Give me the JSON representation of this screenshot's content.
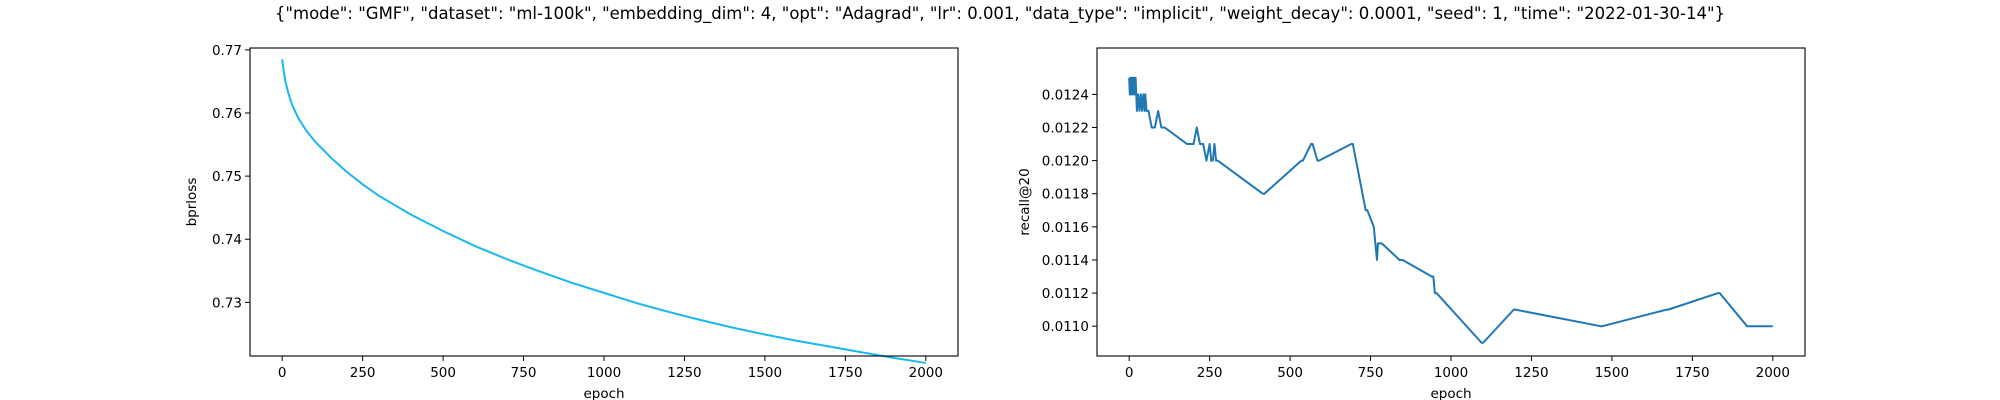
{
  "figure": {
    "suptitle": "{\"mode\": \"GMF\", \"dataset\": \"ml-100k\", \"embedding_dim\": 4, \"opt\": \"Adagrad\", \"lr\": 0.001, \"data_type\": \"implicit\", \"weight_decay\": 0.0001, \"seed\": 1, \"time\": \"2022-01-30-14\"}"
  },
  "chart_data": [
    {
      "type": "line",
      "xlabel": "epoch",
      "ylabel": "bprloss",
      "xlim": [
        -100,
        2100
      ],
      "ylim": [
        0.7215,
        0.7703
      ],
      "xticks": [
        0,
        250,
        500,
        750,
        1000,
        1250,
        1500,
        1750,
        2000
      ],
      "yticks": [
        0.73,
        0.74,
        0.75,
        0.76,
        0.77
      ],
      "grid": false,
      "color": "#1ab7f0",
      "series": [
        {
          "x": [
            0,
            5,
            10,
            20,
            30,
            50,
            75,
            100,
            150,
            200,
            250,
            300,
            400,
            500,
            600,
            700,
            800,
            900,
            1000,
            1100,
            1200,
            1300,
            1400,
            1500,
            1600,
            1700,
            1800,
            1900,
            2000
          ],
          "y": [
            0.7685,
            0.7665,
            0.765,
            0.763,
            0.7614,
            0.7592,
            0.7572,
            0.7556,
            0.753,
            0.7507,
            0.7487,
            0.7469,
            0.7439,
            0.7413,
            0.7389,
            0.7368,
            0.7349,
            0.7331,
            0.7315,
            0.7299,
            0.7285,
            0.7272,
            0.726,
            0.7249,
            0.7239,
            0.723,
            0.7221,
            0.7212,
            0.7204
          ]
        }
      ]
    },
    {
      "type": "line",
      "xlabel": "epoch",
      "ylabel": "recall@20",
      "xlim": [
        -100,
        2100
      ],
      "ylim": [
        0.01082,
        0.01268
      ],
      "xticks": [
        0,
        250,
        500,
        750,
        1000,
        1250,
        1500,
        1750,
        2000
      ],
      "yticks": [
        0.011,
        0.0112,
        0.0114,
        0.0116,
        0.0118,
        0.012,
        0.0122,
        0.0124
      ],
      "grid": false,
      "color": "#1f77b4",
      "series": [
        {
          "x": [
            0,
            2,
            4,
            6,
            8,
            10,
            12,
            14,
            16,
            18,
            20,
            22,
            24,
            28,
            32,
            36,
            40,
            44,
            48,
            50,
            54,
            60,
            70,
            80,
            90,
            100,
            110,
            180,
            200,
            210,
            220,
            230,
            240,
            250,
            255,
            260,
            265,
            270,
            275,
            415,
            420,
            535,
            540,
            565,
            570,
            585,
            590,
            690,
            695,
            735,
            740,
            760,
            765,
            770,
            773,
            778,
            785,
            840,
            850,
            940,
            945,
            950,
            955,
            1095,
            1100,
            1195,
            1200,
            1465,
            1470,
            1670,
            1675,
            1830,
            1835,
            1920,
            1925,
            2000
          ],
          "y": [
            0.0125,
            0.0124,
            0.0125,
            0.0124,
            0.0125,
            0.0124,
            0.0125,
            0.0124,
            0.0125,
            0.0124,
            0.0125,
            0.0124,
            0.0123,
            0.0124,
            0.0123,
            0.0124,
            0.0123,
            0.0124,
            0.0123,
            0.0124,
            0.0123,
            0.0123,
            0.0122,
            0.0122,
            0.0123,
            0.0122,
            0.0122,
            0.0121,
            0.0121,
            0.0122,
            0.0121,
            0.0121,
            0.012,
            0.0121,
            0.012,
            0.012,
            0.0121,
            0.012,
            0.012,
            0.0118,
            0.0118,
            0.012,
            0.012,
            0.0121,
            0.0121,
            0.012,
            0.012,
            0.0121,
            0.0121,
            0.0117,
            0.0117,
            0.0116,
            0.0115,
            0.0114,
            0.0115,
            0.0115,
            0.0115,
            0.0114,
            0.0114,
            0.0113,
            0.0113,
            0.0112,
            0.0112,
            0.0109,
            0.0109,
            0.0111,
            0.0111,
            0.011,
            0.011,
            0.0111,
            0.0111,
            0.0112,
            0.0112,
            0.011,
            0.011,
            0.011
          ]
        }
      ]
    }
  ]
}
